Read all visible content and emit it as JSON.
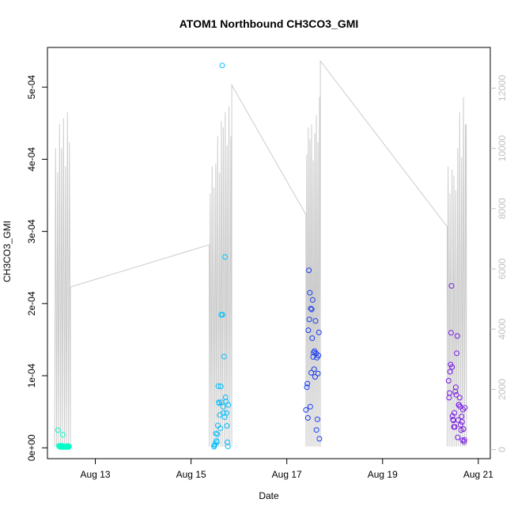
{
  "chart_data": {
    "type": "scatter",
    "title": "ATOM1 Northbound CH3CO3_GMI",
    "xlabel": "Date",
    "ylabel": "CH3CO3_GMI",
    "x_unit": "day of August 2016",
    "xlim": [
      12.0,
      21.25
    ],
    "ylim": [
      -1.5e-05,
      0.000555
    ],
    "x_ticks": [
      {
        "value": 13,
        "label": "Aug 13"
      },
      {
        "value": 15,
        "label": "Aug 15"
      },
      {
        "value": 17,
        "label": "Aug 17"
      },
      {
        "value": 19,
        "label": "Aug 19"
      },
      {
        "value": 21,
        "label": "Aug 21"
      }
    ],
    "y_ticks": [
      {
        "value": 0,
        "label": "0e+00"
      },
      {
        "value": 0.0001,
        "label": "1e-04"
      },
      {
        "value": 0.0002,
        "label": "2e-04"
      },
      {
        "value": 0.0003,
        "label": "3e-04"
      },
      {
        "value": 0.0004,
        "label": "4e-04"
      },
      {
        "value": 0.0005,
        "label": "5e-04"
      }
    ],
    "y2lim": [
      -300,
      13350
    ],
    "y2_ticks": [
      {
        "value": 0,
        "label": "0"
      },
      {
        "value": 2000,
        "label": "2000"
      },
      {
        "value": 4000,
        "label": "4000"
      },
      {
        "value": 6000,
        "label": "6000"
      },
      {
        "value": 8000,
        "label": "8000"
      },
      {
        "value": 10000,
        "label": "10000"
      },
      {
        "value": 12000,
        "label": "12000"
      }
    ],
    "secondary_trace_color": "#cccccc",
    "point_colors": [
      "#00ffc8",
      "#00bfff",
      "#1a3cf0",
      "#7a1ee6"
    ],
    "flights": [
      {
        "start": 12.15,
        "end": 12.48,
        "trace_tops": [
          10000,
          9200,
          10800,
          10000,
          11000,
          9400,
          11200,
          10200
        ],
        "trace_end_alt": 5400
      },
      {
        "start": 15.38,
        "end": 15.85,
        "trace_start_alt": 6800,
        "trace_tops": [
          8500,
          9400,
          8700,
          9500,
          10400,
          9200,
          10900,
          10700,
          11200,
          10100,
          11400,
          10400
        ],
        "trace_end_alt": 12100
      },
      {
        "start": 17.4,
        "end": 17.7,
        "trace_start_alt": 7800,
        "trace_tops": [
          9800,
          10700,
          10300,
          10800,
          9600,
          10500,
          11100,
          10200,
          11700
        ],
        "trace_end_alt": 12900
      },
      {
        "start": 20.35,
        "end": 20.75,
        "trace_start_alt": 7400,
        "trace_tops": [
          9400,
          8500,
          9300,
          9100,
          8600,
          10000,
          11200,
          9700,
          11700,
          10800
        ],
        "trace_end_alt": 10800
      }
    ],
    "series": [
      {
        "color": "#00ffc8",
        "x": [
          12.22,
          12.24,
          12.25,
          12.26,
          12.28,
          12.29,
          12.3,
          12.31,
          12.33,
          12.34,
          12.35,
          12.37,
          12.38,
          12.39,
          12.4,
          12.42,
          12.43,
          12.44,
          12.45,
          12.27,
          12.32,
          12.36,
          12.41
        ],
        "y": [
          2.45e-05,
          2.5e-06,
          2e-06,
          1.5e-06,
          1e-06,
          2e-06,
          3e-06,
          1.5e-06,
          2e-06,
          1e-06,
          2e-06,
          1.5e-06,
          2e-06,
          1e-06,
          1.5e-06,
          2.5e-06,
          2e-06,
          1e-06,
          2e-06,
          2.9e-06,
          1.81e-05,
          1.5e-06,
          1.5e-06
        ]
      },
      {
        "color": "#00bfff",
        "x": [
          15.48,
          15.5,
          15.52,
          15.54,
          15.55,
          15.56,
          15.57,
          15.58,
          15.6,
          15.61,
          15.62,
          15.63,
          15.64,
          15.65,
          15.66,
          15.67,
          15.68,
          15.69,
          15.7,
          15.71,
          15.72,
          15.73,
          15.74,
          15.75,
          15.76,
          15.77,
          15.78,
          15.49,
          15.53,
          15.59
        ],
        "y": [
          1.5e-06,
          5e-06,
          2e-05,
          7.8e-06,
          1.88e-05,
          3.1e-05,
          8.55e-05,
          6.3e-05,
          4.55e-05,
          2.7e-05,
          8.52e-05,
          0.0001845,
          6.3e-05,
          0.00053,
          0.0001845,
          5.7e-05,
          4.85e-05,
          0.0001265,
          4.25e-05,
          0.0002645,
          7e-05,
          6.4e-05,
          4.82e-05,
          3.05e-05,
          7.8e-06,
          2e-06,
          5.95e-05,
          3.5e-06,
          9.5e-06,
          6.2e-05
        ]
      },
      {
        "color": "#1a3cf0",
        "x": [
          17.4,
          17.42,
          17.44,
          17.45,
          17.46,
          17.47,
          17.48,
          17.5,
          17.51,
          17.52,
          17.53,
          17.54,
          17.55,
          17.56,
          17.57,
          17.58,
          17.59,
          17.6,
          17.61,
          17.62,
          17.63,
          17.64,
          17.65,
          17.66,
          17.67,
          17.68,
          17.43,
          17.49
        ],
        "y": [
          5.25e-05,
          8.4e-05,
          4.15e-05,
          0.000163,
          0.000246,
          0.000178,
          0.000215,
          0.000193,
          0.000104,
          0.000192,
          0.000152,
          0.000205,
          0.000126,
          0.000132,
          0.000109,
          0.000134,
          9.85e-05,
          0.000176,
          0.000131,
          2.48e-05,
          0.000125,
          3.95e-05,
          0.000103,
          0.000128,
          0.00016,
          1.25e-05,
          8.9e-05,
          5.7e-05
        ]
      },
      {
        "color": "#7a1ee6",
        "x": [
          20.38,
          20.39,
          20.4,
          20.41,
          20.42,
          20.43,
          20.44,
          20.45,
          20.46,
          20.47,
          20.48,
          20.49,
          20.5,
          20.51,
          20.52,
          20.53,
          20.54,
          20.55,
          20.56,
          20.57,
          20.58,
          20.59,
          20.6,
          20.61,
          20.62,
          20.63,
          20.64,
          20.65,
          20.66,
          20.67,
          20.68,
          20.69,
          20.7,
          20.71,
          20.72
        ],
        "y": [
          9.3e-05,
          6.95e-05,
          7.6e-05,
          0.0001055,
          0.0001155,
          0.0001595,
          0.0002245,
          0.000112,
          4.4e-05,
          3.9e-05,
          3.8e-05,
          2.9e-05,
          4.85e-05,
          2.9e-05,
          7.8e-05,
          8.4e-05,
          7.35e-05,
          0.000131,
          0.000155,
          1.45e-05,
          3.85e-05,
          5.95e-05,
          5.95e-05,
          6.95e-05,
          5.7e-05,
          3.2e-05,
          2.45e-05,
          4.35e-05,
          3.6e-05,
          1.05e-05,
          5.3e-05,
          2.6e-05,
          8.5e-06,
          1.1e-05,
          5.55e-05
        ]
      }
    ]
  }
}
